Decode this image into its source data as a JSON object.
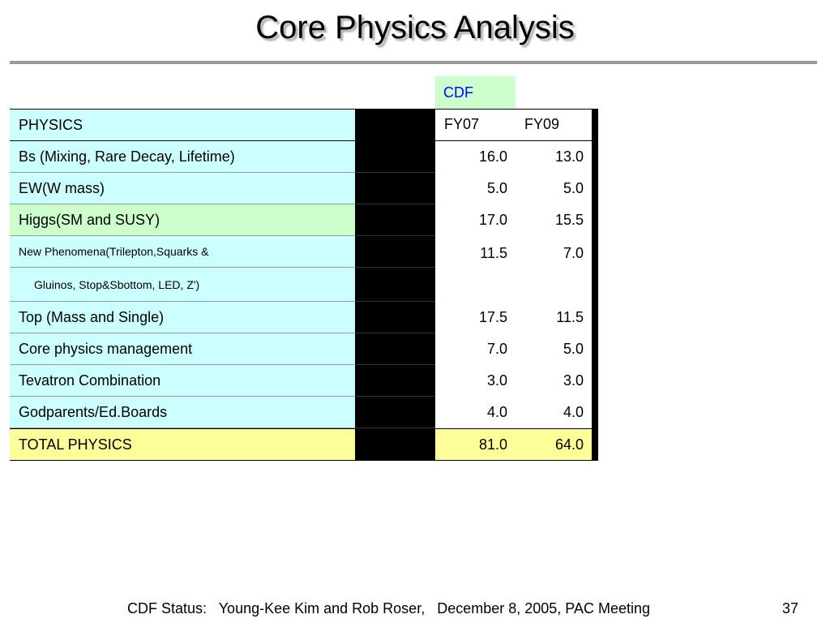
{
  "header": {
    "title": "Core Physics Analysis"
  },
  "table": {
    "group": "CDF",
    "columns": [
      "PHYSICS",
      "FY07",
      "FY09"
    ],
    "rows": [
      [
        "Bs (Mixing, Rare Decay, Lifetime)",
        "16.0",
        "13.0"
      ],
      [
        "EW(W mass)",
        "5.0",
        "5.0"
      ],
      [
        "Higgs(SM and SUSY)",
        "17.0",
        "15.5"
      ],
      [
        "New Phenomena(Trilepton,Squarks &",
        "11.5",
        "7.0"
      ],
      [
        "Gluinos, Stop&Sbottom, LED, Z')"
      ],
      [
        "Top (Mass and Single)",
        "17.5",
        "11.5"
      ],
      [
        "Core physics management",
        "7.0",
        "5.0"
      ],
      [
        "Tevatron Combination",
        "3.0",
        "3.0"
      ],
      [
        "Godparents/Ed.Boards",
        "4.0",
        "4.0"
      ]
    ],
    "total": [
      "TOTAL PHYSICS",
      "81.0",
      "64.0"
    ]
  },
  "footer": {
    "text": "CDF Status:   Young-Kee Kim and Rob Roser,   December 8, 2005, PAC Meeting",
    "page": "37"
  }
}
